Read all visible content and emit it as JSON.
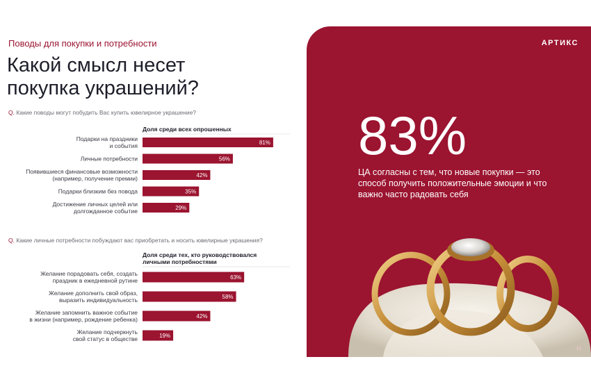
{
  "eyebrow": "Поводы для покупки и потребности",
  "headline_lines": [
    "Какой смысл несет",
    "покупка украшений?"
  ],
  "questions": [
    {
      "mark": "Q.",
      "text": "Какие поводы могут побудить Вас купить ювелирное украшение?"
    },
    {
      "mark": "Q.",
      "text": "Какие личные потребности побуждают вас приобретать и носить ювелирные украшения?"
    }
  ],
  "chart_data": [
    {
      "type": "bar",
      "orientation": "horizontal",
      "header": [
        "Доля среди всех опрошенных"
      ],
      "categories": [
        [
          "Подарки на праздники",
          "и события"
        ],
        [
          "Личные потребности"
        ],
        [
          "Появившиеся финансовые возможности",
          "(например, получение премии)"
        ],
        [
          "Подарки близким без повода"
        ],
        [
          "Достижение личных целей или",
          "долгожданное событие"
        ]
      ],
      "values": [
        81,
        56,
        42,
        35,
        29
      ],
      "value_labels": [
        "81%",
        "56%",
        "42%",
        "35%",
        "29%"
      ],
      "unit": "%",
      "xlim": [
        0,
        100
      ],
      "color": "#9b1430"
    },
    {
      "type": "bar",
      "orientation": "horizontal",
      "header": [
        "Доля среди тех, кто руководствовался",
        "личными потребностями"
      ],
      "categories": [
        [
          "Желание порадовать себя, создать",
          "праздник в ежедневной рутине"
        ],
        [
          "Желание дополнить свой образ,",
          "выразить индивидуальность"
        ],
        [
          "Желание запомнить важное событие",
          "в жизни (например, рождение ребенка)"
        ],
        [
          "Желание подчеркнуть",
          "свой статус в обществе"
        ]
      ],
      "values": [
        63,
        58,
        42,
        19
      ],
      "value_labels": [
        "63%",
        "58%",
        "42%",
        "19%"
      ],
      "unit": "%",
      "xlim": [
        0,
        100
      ],
      "color": "#9b1430"
    }
  ],
  "panel": {
    "logo": "АРТИКС",
    "big_number": "83%",
    "statement": "ЦА согласны с тем, что новые покупки — это способ получить положительные эмоции и что важно часто радовать себя",
    "page_number": "11",
    "background": "#9b1430"
  }
}
